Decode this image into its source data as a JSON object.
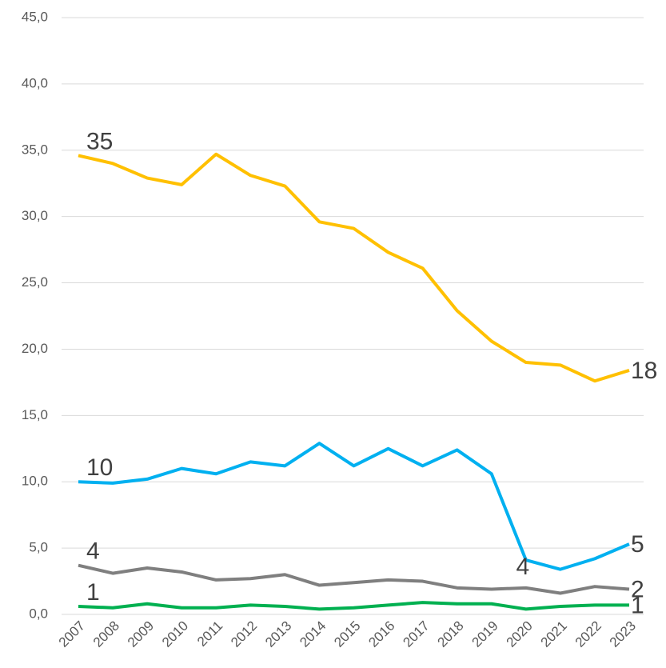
{
  "chart_data": {
    "type": "line",
    "categories": [
      "2007",
      "2008",
      "2009",
      "2010",
      "2011",
      "2012",
      "2013",
      "2014",
      "2015",
      "2016",
      "2017",
      "2018",
      "2019",
      "2020",
      "2021",
      "2022",
      "2023"
    ],
    "series": [
      {
        "color": "#FFC000",
        "values": [
          34.6,
          34.0,
          32.9,
          32.4,
          34.7,
          33.1,
          32.3,
          29.6,
          29.1,
          27.3,
          26.1,
          22.9,
          20.6,
          19.0,
          18.8,
          17.6,
          18.4
        ],
        "value_labels": [
          "35",
          null,
          null,
          null,
          null,
          null,
          null,
          null,
          null,
          null,
          null,
          null,
          null,
          null,
          null,
          null,
          "18"
        ]
      },
      {
        "color": "#00B0F0",
        "values": [
          10.0,
          9.9,
          10.2,
          11.0,
          10.6,
          11.5,
          11.2,
          12.9,
          11.2,
          12.5,
          11.2,
          12.4,
          10.6,
          4.1,
          3.4,
          4.2,
          5.3
        ],
        "value_labels": [
          "10",
          null,
          null,
          null,
          null,
          null,
          null,
          null,
          null,
          null,
          null,
          null,
          null,
          "4",
          null,
          null,
          "5"
        ]
      },
      {
        "color": "#7F7F7F",
        "values": [
          3.7,
          3.1,
          3.5,
          3.2,
          2.6,
          2.7,
          3.0,
          2.2,
          2.4,
          2.6,
          2.5,
          2.0,
          1.9,
          2.0,
          1.6,
          2.1,
          1.9
        ],
        "value_labels": [
          "4",
          null,
          null,
          null,
          null,
          null,
          null,
          null,
          null,
          null,
          null,
          null,
          null,
          null,
          null,
          null,
          "2"
        ]
      },
      {
        "color": "#00B050",
        "values": [
          0.6,
          0.5,
          0.8,
          0.5,
          0.5,
          0.7,
          0.6,
          0.4,
          0.5,
          0.7,
          0.9,
          0.8,
          0.8,
          0.4,
          0.6,
          0.7,
          0.7
        ],
        "value_labels": [
          "1",
          null,
          null,
          null,
          null,
          null,
          null,
          null,
          null,
          null,
          null,
          null,
          null,
          null,
          null,
          null,
          "1"
        ]
      }
    ],
    "ylim": [
      0,
      45
    ],
    "yticks": [
      {
        "value": 0,
        "label": "0,0"
      },
      {
        "value": 5,
        "label": "5,0"
      },
      {
        "value": 10,
        "label": "10,0"
      },
      {
        "value": 15,
        "label": "15,0"
      },
      {
        "value": 20,
        "label": "20,0"
      },
      {
        "value": 25,
        "label": "25,0"
      },
      {
        "value": 30,
        "label": "30,0"
      },
      {
        "value": 35,
        "label": "35,0"
      },
      {
        "value": 40,
        "label": "40,0"
      },
      {
        "value": 45,
        "label": "45,0"
      }
    ],
    "grid": true
  }
}
